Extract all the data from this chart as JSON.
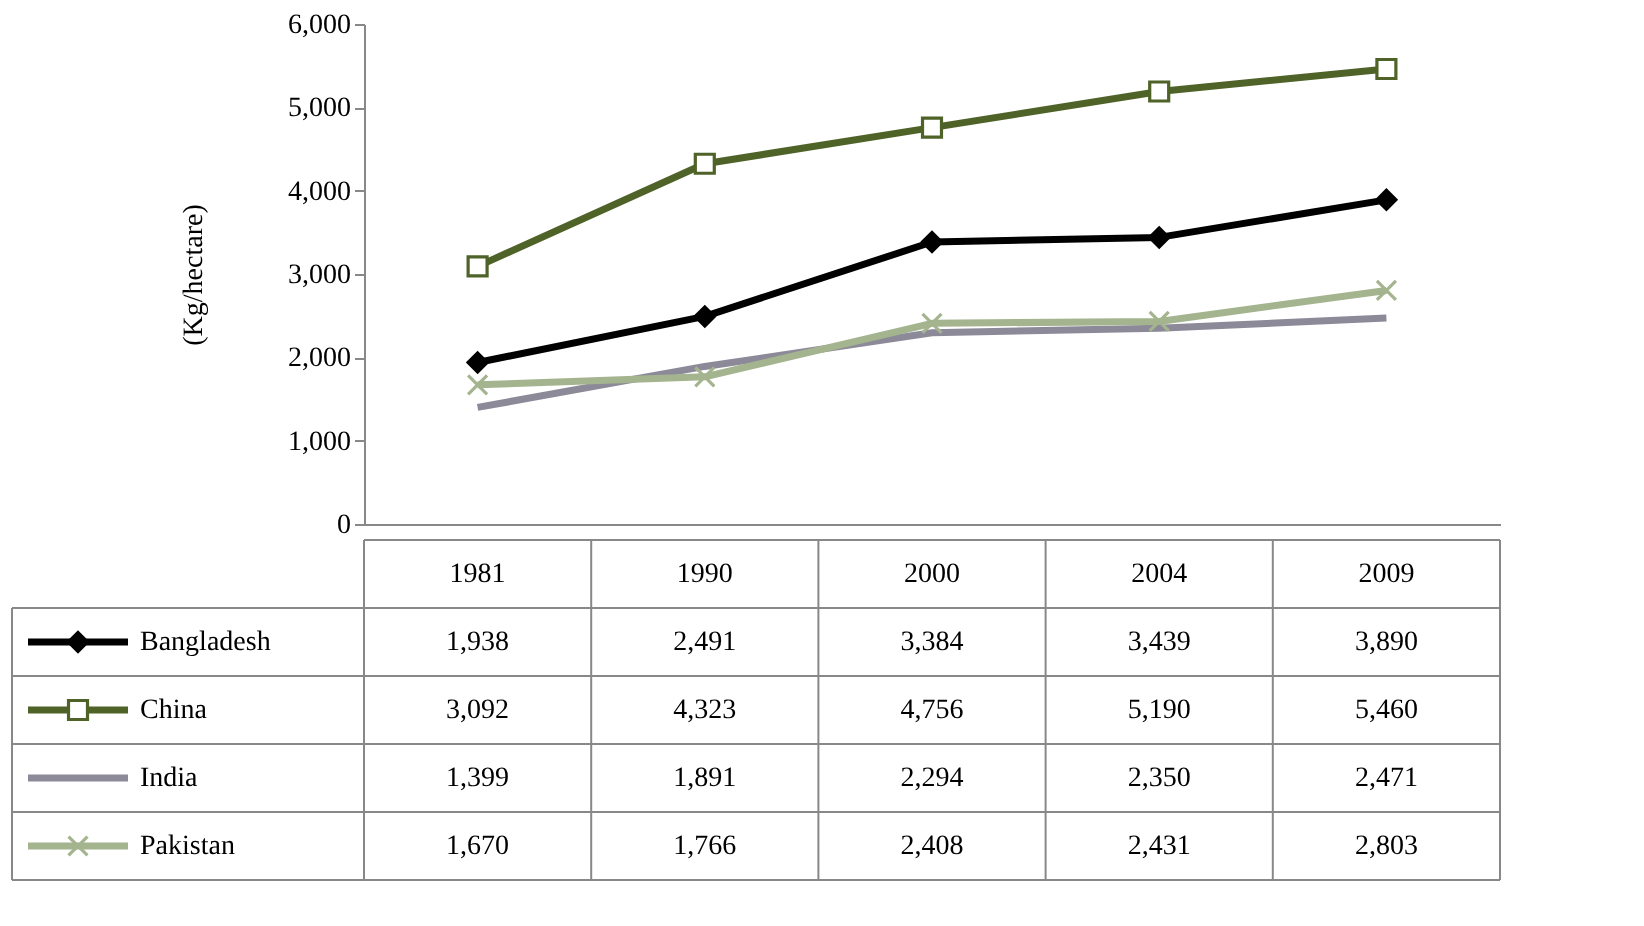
{
  "chart_data": {
    "type": "line",
    "ylabel": "(Kg/hectare)",
    "categories": [
      "1981",
      "1990",
      "2000",
      "2004",
      "2009"
    ],
    "series": [
      {
        "name": "Bangladesh",
        "color": "#000000",
        "marker": "diamond",
        "values": [
          1938,
          2491,
          3384,
          3439,
          3890
        ],
        "value_labels": [
          "1,938",
          "2,491",
          "3,384",
          "3,439",
          "3,890"
        ]
      },
      {
        "name": "China",
        "color": "#4f6228",
        "marker": "square",
        "values": [
          3092,
          4323,
          4756,
          5190,
          5460
        ],
        "value_labels": [
          "3,092",
          "4,323",
          "4,756",
          "5,190",
          "5,460"
        ]
      },
      {
        "name": "India",
        "color": "#8c8a99",
        "marker": "none",
        "values": [
          1399,
          1891,
          2294,
          2350,
          2471
        ],
        "value_labels": [
          "1,399",
          "1,891",
          "2,294",
          "2,350",
          "2,471"
        ]
      },
      {
        "name": "Pakistan",
        "color": "#a4b48e",
        "marker": "cross",
        "values": [
          1670,
          1766,
          2408,
          2431,
          2803
        ],
        "value_labels": [
          "1,670",
          "1,766",
          "2,408",
          "2,431",
          "2,803"
        ]
      }
    ],
    "ylim": [
      0,
      6000
    ],
    "yticks": [
      0,
      {
        "value": 1000,
        "label": "1,000"
      },
      {
        "value": 2000,
        "label": "2,000"
      },
      {
        "value": 3000,
        "label": "3,000"
      },
      {
        "value": 4000,
        "label": "4,000"
      },
      {
        "value": 5000,
        "label": "5,000"
      },
      {
        "value": 6000,
        "label": "6,000"
      }
    ],
    "grid": false,
    "legend": "bottom"
  }
}
